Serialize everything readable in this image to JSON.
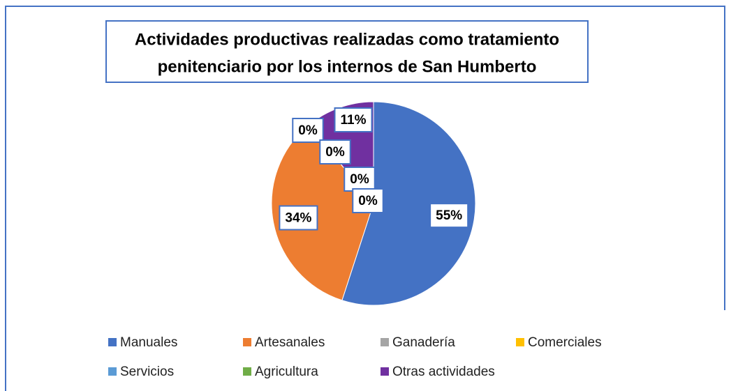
{
  "chart_data": {
    "type": "pie",
    "title": [
      "Actividades productivas realizadas como tratamiento",
      "penitenciario por los internos de San Humberto"
    ],
    "categories": [
      "Manuales",
      "Artesanales",
      "Ganadería",
      "Comerciales",
      "Servicios",
      "Agricultura",
      "Otras actividades"
    ],
    "values": [
      55,
      34,
      0,
      0,
      0,
      0,
      11
    ],
    "value_labels": [
      "55%",
      "34%",
      "0%",
      "0%",
      "0%",
      "0%",
      "11%"
    ],
    "colors": [
      "#4472c4",
      "#ed7d31",
      "#a5a5a5",
      "#ffc000",
      "#5b9bd5",
      "#70ad47",
      "#7030a0"
    ],
    "legend": "bottom"
  }
}
